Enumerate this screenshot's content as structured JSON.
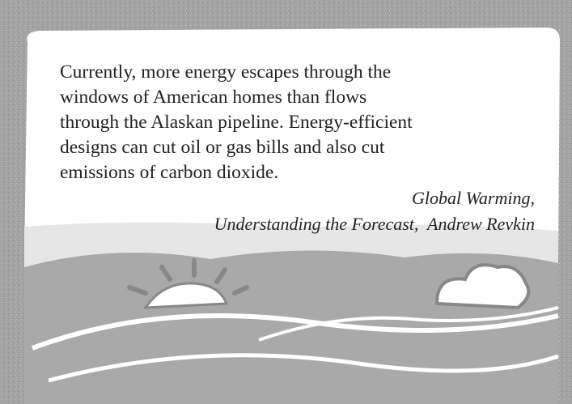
{
  "quote": {
    "lines": [
      "Currently, more energy escapes through the",
      "windows of American homes than flows",
      "through the Alaskan pipeline. Energy-efficient",
      "designs can cut oil or gas bills and also cut",
      "emissions of carbon dioxide."
    ]
  },
  "attribution": {
    "lines": [
      "Global Warming,",
      "Understanding the Forecast,  Andrew Revkin"
    ]
  }
}
